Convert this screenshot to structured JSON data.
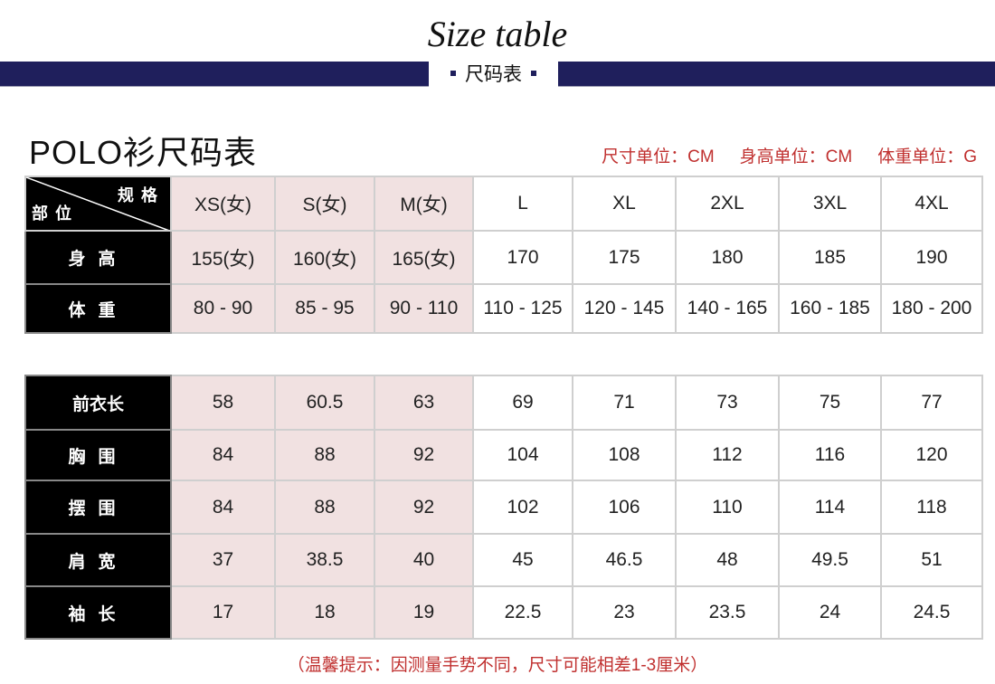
{
  "header": {
    "title": "Size table",
    "subtitle": "尺码表",
    "accent": "#1f1f5c"
  },
  "table_title": "POLO衫尺码表",
  "units": [
    "尺寸单位：CM",
    "身高单位：CM",
    "体重单位：G"
  ],
  "corner": {
    "top": "规格",
    "bottom": "部位"
  },
  "sizes": [
    "XS(女)",
    "S(女)",
    "M(女)",
    "L",
    "XL",
    "2XL",
    "3XL",
    "4XL"
  ],
  "table1": [
    {
      "label": "身高",
      "values": [
        "155(女)",
        "160(女)",
        "165(女)",
        "170",
        "175",
        "180",
        "185",
        "190"
      ]
    },
    {
      "label": "体重",
      "values": [
        "80 - 90",
        "85 - 95",
        "90 - 110",
        "110 - 125",
        "120 - 145",
        "140 - 165",
        "160 - 185",
        "180 - 200"
      ]
    }
  ],
  "table2": [
    {
      "label": "前衣长",
      "values": [
        "58",
        "60.5",
        "63",
        "69",
        "71",
        "73",
        "75",
        "77"
      ]
    },
    {
      "label": "胸围",
      "values": [
        "84",
        "88",
        "92",
        "104",
        "108",
        "112",
        "116",
        "120"
      ]
    },
    {
      "label": "摆围",
      "values": [
        "84",
        "88",
        "92",
        "102",
        "106",
        "110",
        "114",
        "118"
      ]
    },
    {
      "label": "肩宽",
      "values": [
        "37",
        "38.5",
        "40",
        "45",
        "46.5",
        "48",
        "49.5",
        "51"
      ]
    },
    {
      "label": "袖长",
      "values": [
        "17",
        "18",
        "19",
        "22.5",
        "23",
        "23.5",
        "24",
        "24.5"
      ]
    }
  ],
  "note": "（温馨提示：因测量手势不同，尺寸可能相差1-3厘米）",
  "colors": {
    "women_column_bg": "#f1e1e1",
    "note_text": "#c0302f",
    "label_bg": "#000000"
  }
}
